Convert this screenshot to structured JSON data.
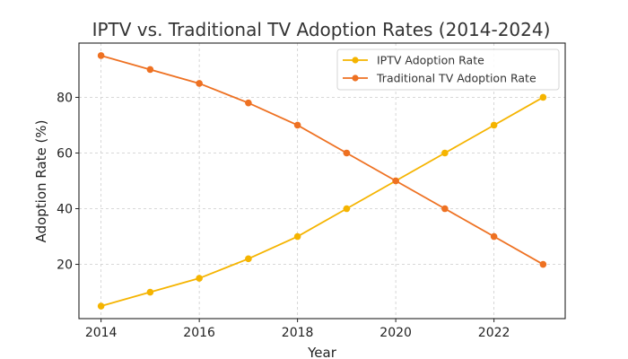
{
  "chart_data": {
    "type": "line",
    "title": "IPTV vs. Traditional TV Adoption Rates (2014-2024)",
    "xlabel": "Year",
    "ylabel": "Adoption Rate (%)",
    "x": [
      2014,
      2015,
      2016,
      2017,
      2018,
      2019,
      2020,
      2021,
      2022,
      2023
    ],
    "xlim": [
      2013.55,
      2023.45
    ],
    "ylim": [
      0.5,
      99.5
    ],
    "xticks": [
      2014,
      2016,
      2018,
      2020,
      2022
    ],
    "yticks": [
      20,
      40,
      60,
      80
    ],
    "grid": true,
    "legend_position": "top-right",
    "series": [
      {
        "name": "IPTV Adoption Rate",
        "color": "#f5b400",
        "values": [
          5,
          10,
          15,
          22,
          30,
          40,
          50,
          60,
          70,
          80
        ]
      },
      {
        "name": "Traditional TV Adoption Rate",
        "color": "#ee7122",
        "values": [
          95,
          90,
          85,
          78,
          70,
          60,
          50,
          40,
          30,
          20
        ]
      }
    ]
  }
}
